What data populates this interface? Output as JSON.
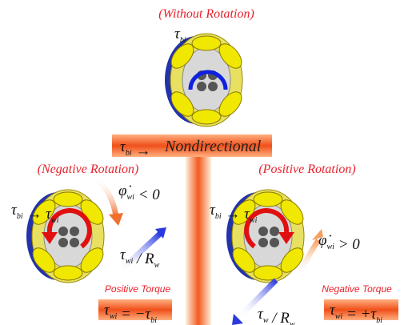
{
  "top": {
    "caption": "(Without Rotation)",
    "label": [
      "τ",
      {
        "sub": "bi"
      }
    ]
  },
  "banner": {
    "math": [
      "τ",
      {
        "sub": "bi"
      },
      " → "
    ],
    "text": "Nondirectional"
  },
  "left": {
    "caption": "(Negative Rotation)",
    "mapping": [
      "τ",
      {
        "sub": "bi"
      },
      " → τ",
      {
        "sub": "wi"
      }
    ],
    "rate": [
      "φ̇",
      {
        "sub": "wi"
      },
      " < 0"
    ],
    "force": [
      "τ",
      {
        "sub": "wi"
      },
      " / R",
      {
        "sub": "w"
      }
    ],
    "torque_caption": "Positive Torque",
    "equation": [
      "τ",
      {
        "sub": "wi"
      },
      " = −τ",
      {
        "sub": "bi"
      }
    ]
  },
  "right": {
    "caption": "(Positive Rotation)",
    "mapping": [
      "τ",
      {
        "sub": "bi"
      },
      " → τ",
      {
        "sub": "wi"
      }
    ],
    "rate": [
      "φ̇",
      {
        "sub": "wi"
      },
      " > 0"
    ],
    "force": [
      "τ",
      {
        "sub": "w"
      },
      " / R",
      {
        "sub": "w"
      }
    ],
    "torque_caption": "Negative Torque",
    "equation": [
      "τ",
      {
        "sub": "wi"
      },
      " = +τ",
      {
        "sub": "bi"
      }
    ]
  }
}
